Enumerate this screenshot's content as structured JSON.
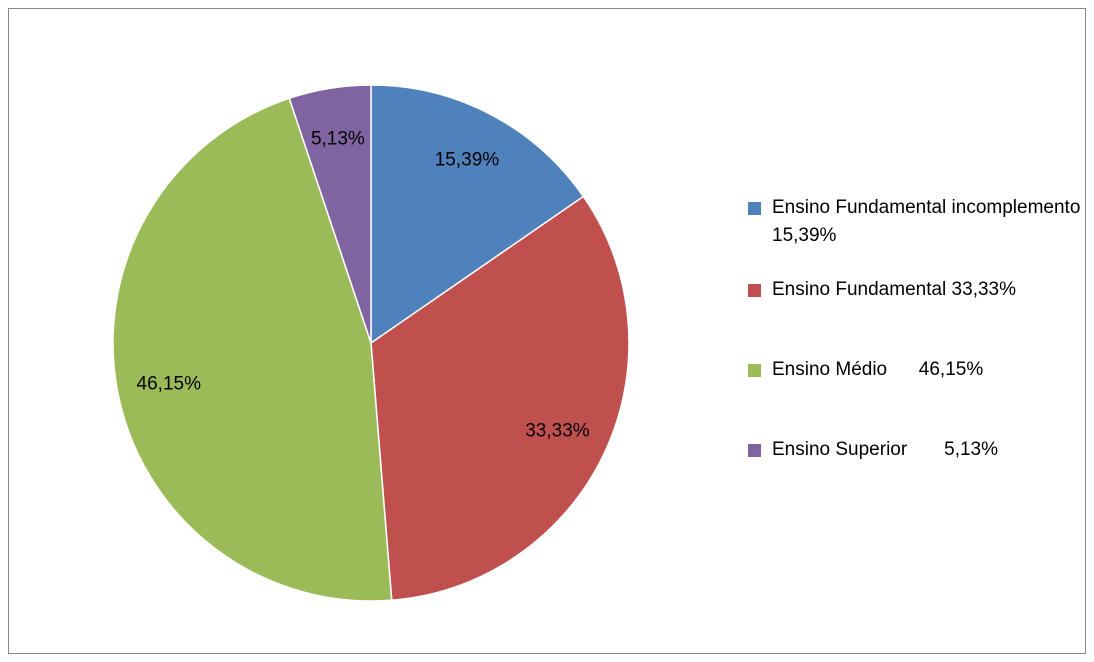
{
  "chart_data": {
    "type": "pie",
    "categories": [
      "Ensino Fundamental incomplemento 15,39%",
      "Ensino Fundamental 33,33%",
      "Ensino Médio      46,15%",
      "Ensino Superior       5,13%"
    ],
    "values": [
      15.39,
      33.33,
      46.15,
      5.13
    ],
    "value_labels": [
      "15,39%",
      "33,33%",
      "46,15%",
      "5,13%"
    ],
    "colors": [
      "#4f81bd",
      "#c0504d",
      "#9bbb59",
      "#8064a2"
    ],
    "legend": "right"
  }
}
